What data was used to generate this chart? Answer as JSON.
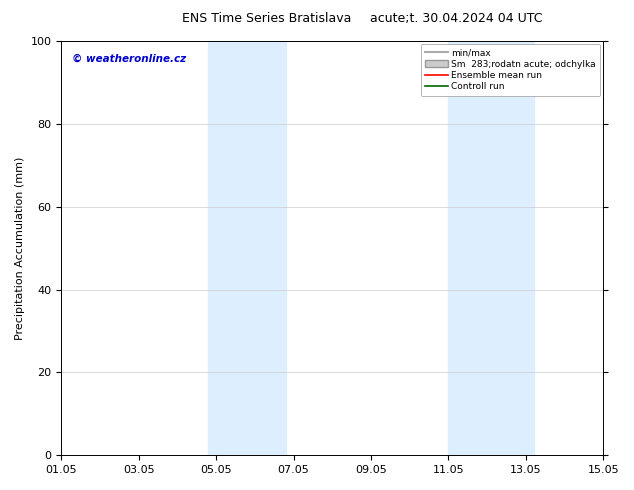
{
  "title_left": "ENS Time Series Bratislava",
  "title_right": "acute;t. 30.04.2024 04 UTC",
  "ylabel": "Precipitation Accumulation (mm)",
  "watermark": "© weatheronline.cz",
  "watermark_color": "#0000cc",
  "xlim_start": 0,
  "xlim_end": 14,
  "ylim": [
    0,
    100
  ],
  "yticks": [
    0,
    20,
    40,
    60,
    80,
    100
  ],
  "xtick_labels": [
    "01.05",
    "03.05",
    "05.05",
    "07.05",
    "09.05",
    "11.05",
    "13.05",
    "15.05"
  ],
  "xtick_positions": [
    0,
    2,
    4,
    6,
    8,
    10,
    12,
    14
  ],
  "shaded_regions": [
    {
      "xmin": 3.8,
      "xmax": 5.8,
      "color": "#ddeeff"
    },
    {
      "xmin": 10.0,
      "xmax": 12.2,
      "color": "#ddeeff"
    }
  ],
  "legend_entries": [
    {
      "label": "min/max",
      "color": "#aaaaaa",
      "style": "line",
      "lw": 1.5
    },
    {
      "label": "Sm  283;rodatn acute; odchylka",
      "color": "#cccccc",
      "style": "fill"
    },
    {
      "label": "Ensemble mean run",
      "color": "#ff0000",
      "style": "line",
      "lw": 1.2
    },
    {
      "label": "Controll run",
      "color": "#006600",
      "style": "line",
      "lw": 1.2
    }
  ],
  "background_color": "#ffffff",
  "plot_bg_color": "#ffffff",
  "border_color": "#000000",
  "grid_color": "#cccccc",
  "font_size": 8,
  "title_font_size": 9
}
